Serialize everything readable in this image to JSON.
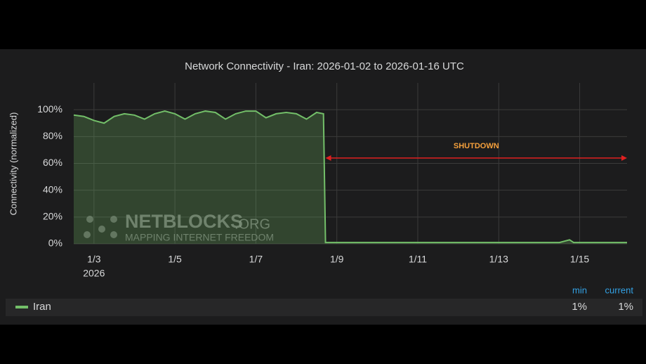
{
  "chart_data": {
    "type": "line",
    "title": "Network Connectivity - Iran: 2026-01-02 to 2026-01-16 UTC",
    "y_label": "Connectivity (normalized)",
    "x": [
      2.5,
      2.75,
      3.0,
      3.25,
      3.5,
      3.75,
      4.0,
      4.25,
      4.5,
      4.75,
      5.0,
      5.25,
      5.5,
      5.75,
      6.0,
      6.25,
      6.5,
      6.75,
      7.0,
      7.25,
      7.5,
      7.75,
      8.0,
      8.25,
      8.5,
      8.67,
      8.72,
      9.0,
      9.5,
      10.0,
      10.5,
      11.0,
      11.5,
      12.0,
      12.5,
      13.0,
      13.5,
      14.0,
      14.5,
      14.75,
      14.85,
      15.0,
      15.5,
      16.0,
      16.17
    ],
    "series": [
      {
        "name": "Iran",
        "color": "#73bf69",
        "values": [
          96,
          95,
          92,
          90,
          95,
          97,
          96,
          93,
          97,
          99,
          97,
          93,
          97,
          99,
          98,
          93,
          97,
          99,
          99,
          94,
          97,
          98,
          97,
          93,
          98,
          97,
          1,
          1,
          1,
          1,
          1,
          1,
          1,
          1,
          1,
          1,
          1,
          1,
          1,
          3,
          1,
          1,
          1,
          1,
          1
        ]
      }
    ],
    "xlim": [
      2.5,
      16.17
    ],
    "xticks": [
      {
        "value": 3,
        "label": "1/3"
      },
      {
        "value": 5,
        "label": "1/5"
      },
      {
        "value": 7,
        "label": "1/7"
      },
      {
        "value": 9,
        "label": "1/9"
      },
      {
        "value": 11,
        "label": "1/11"
      },
      {
        "value": 13,
        "label": "1/13"
      },
      {
        "value": 15,
        "label": "1/15"
      }
    ],
    "year_label": "2026",
    "ylim": [
      0,
      120
    ],
    "yticks": [
      {
        "value": 0,
        "label": "0%"
      },
      {
        "value": 20,
        "label": "20%"
      },
      {
        "value": 40,
        "label": "40%"
      },
      {
        "value": 60,
        "label": "60%"
      },
      {
        "value": 80,
        "label": "80%"
      },
      {
        "value": 100,
        "label": "100%"
      }
    ],
    "grid": true,
    "annotation": {
      "text": "SHUTDOWN",
      "x_start": 8.72,
      "x_end": 16.17,
      "y": 64,
      "color": "#e02020"
    },
    "watermark": {
      "name": "NETBLOCKS",
      "suffix": ".ORG",
      "tagline": "MAPPING INTERNET FREEDOM"
    },
    "legend_stats": [
      {
        "name": "min",
        "label": "1%"
      },
      {
        "name": "current",
        "label": "1%"
      }
    ]
  }
}
